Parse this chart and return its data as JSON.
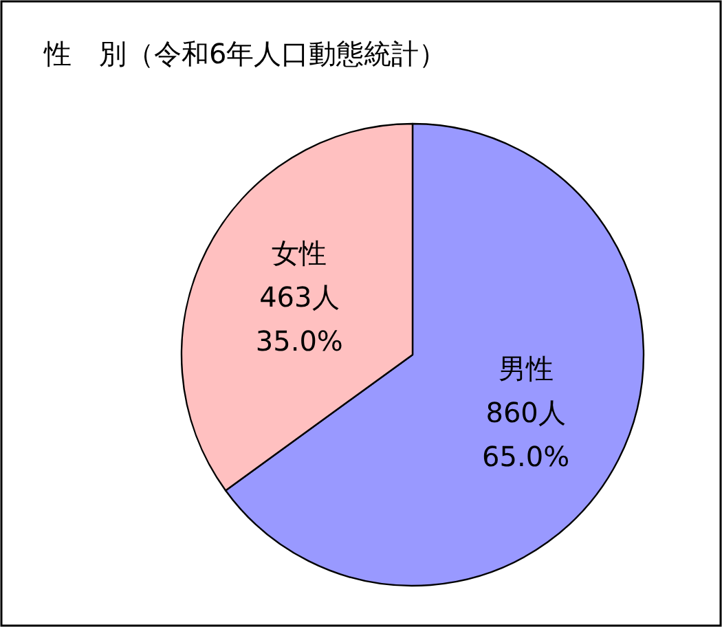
{
  "chart_data": {
    "type": "pie",
    "title": "性　別（令和6年人口動態統計）",
    "categories": [
      "男性",
      "女性"
    ],
    "values": [
      860,
      463
    ],
    "colors": [
      "#9999ff",
      "#ffc0c0"
    ],
    "value_labels": [
      "860人 65.0%",
      "463人 35.0%"
    ],
    "legend": false
  }
}
